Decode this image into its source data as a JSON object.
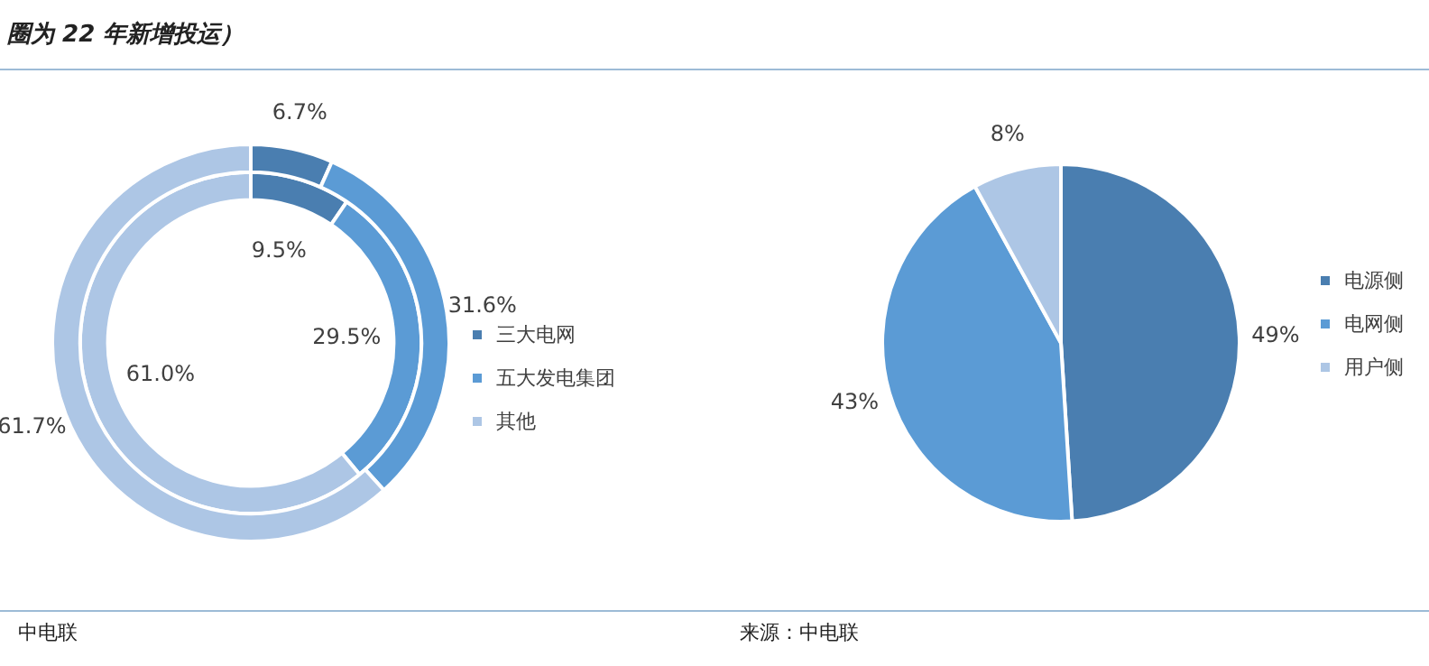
{
  "chart_data": [
    {
      "type": "donut",
      "title": "圈为 22 年新增投运）",
      "categories": [
        "三大电网",
        "五大发电集团",
        "其他"
      ],
      "colors": [
        "#4a7eb0",
        "#5b9bd5",
        "#adc6e5"
      ],
      "series": [
        {
          "values": [
            6.7,
            31.6,
            61.7
          ],
          "value_labels": [
            "6.7%",
            "31.6%",
            "61.7%"
          ]
        },
        {
          "values": [
            9.5,
            29.5,
            61.0
          ],
          "value_labels": [
            "9.5%",
            "29.5%",
            "61.0%"
          ]
        }
      ],
      "legend": "right",
      "annotations": [
        "中电联"
      ]
    },
    {
      "type": "pie",
      "categories": [
        "电源侧",
        "电网侧",
        "用户侧"
      ],
      "colors": [
        "#4a7eb0",
        "#5b9bd5",
        "#adc6e5"
      ],
      "values": [
        49,
        43,
        8
      ],
      "value_labels": [
        "49%",
        "43%",
        "8%"
      ],
      "legend": "right",
      "annotations": [
        "来源：中电联"
      ]
    }
  ]
}
